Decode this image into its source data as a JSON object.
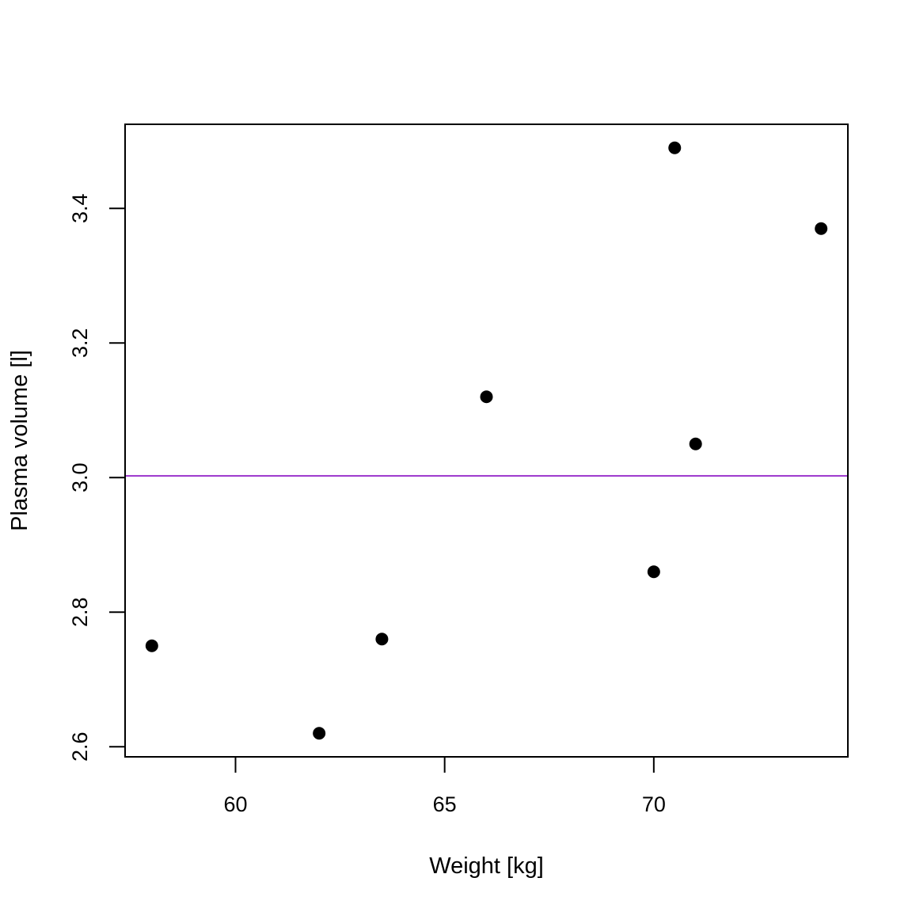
{
  "chart_data": {
    "type": "scatter",
    "title": "",
    "xlabel": "Weight [kg]",
    "ylabel": "Plasma volume [l]",
    "xlim": [
      57.36,
      74.64
    ],
    "ylim": [
      2.585,
      3.525
    ],
    "x_ticks": [
      60,
      65,
      70
    ],
    "x_tick_labels": [
      "60",
      "65",
      "70"
    ],
    "y_ticks": [
      2.6,
      2.8,
      3.0,
      3.2,
      3.4
    ],
    "y_tick_labels": [
      "2.6",
      "2.8",
      "3.0",
      "3.2",
      "3.4"
    ],
    "points": [
      {
        "x": 58.0,
        "y": 2.75
      },
      {
        "x": 62.0,
        "y": 2.62
      },
      {
        "x": 63.5,
        "y": 2.76
      },
      {
        "x": 66.0,
        "y": 3.12
      },
      {
        "x": 70.0,
        "y": 2.86
      },
      {
        "x": 70.5,
        "y": 3.49
      },
      {
        "x": 71.0,
        "y": 3.05
      },
      {
        "x": 74.0,
        "y": 3.37
      }
    ],
    "reference_line": {
      "orientation": "horizontal",
      "y": 3.0025,
      "color": "#9932CC"
    },
    "point_color": "#000000",
    "grid": false,
    "legend": "none"
  }
}
